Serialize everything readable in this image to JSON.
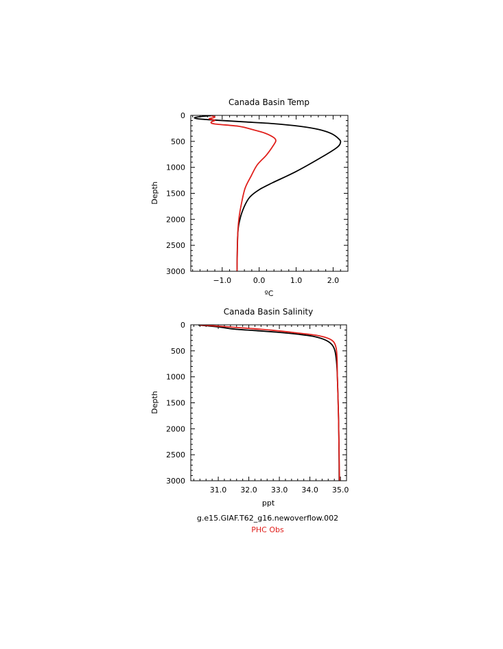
{
  "chart_data": [
    {
      "type": "line",
      "title": "Canada Basin Temp",
      "xlabel": "ºC",
      "ylabel": "Depth",
      "xlim": [
        -1.85,
        2.4
      ],
      "ylim": [
        3000,
        0
      ],
      "xticks": [
        -1.0,
        0.0,
        1.0,
        2.0
      ],
      "xtick_labels": [
        "−1.0",
        "0.0",
        "1.0",
        "2.0"
      ],
      "yticks": [
        0,
        500,
        1000,
        1500,
        2000,
        2500,
        3000
      ],
      "ytick_labels": [
        "0",
        "500",
        "1000",
        "1500",
        "2000",
        "2500",
        "3000"
      ],
      "series": [
        {
          "name": "g.e15.GIAF.T62_g16.newoverflow.002",
          "color": "#000000",
          "points": [
            [
              -1.3,
              5
            ],
            [
              -1.55,
              20
            ],
            [
              -1.75,
              45
            ],
            [
              -1.6,
              70
            ],
            [
              -1.1,
              95
            ],
            [
              -0.4,
              125
            ],
            [
              0.4,
              160
            ],
            [
              1.1,
              210
            ],
            [
              1.6,
              270
            ],
            [
              1.95,
              350
            ],
            [
              2.15,
              450
            ],
            [
              2.2,
              520
            ],
            [
              2.1,
              620
            ],
            [
              1.7,
              800
            ],
            [
              1.0,
              1080
            ],
            [
              0.35,
              1300
            ],
            [
              0.0,
              1430
            ],
            [
              -0.25,
              1570
            ],
            [
              -0.4,
              1750
            ],
            [
              -0.52,
              2000
            ],
            [
              -0.58,
              2300
            ],
            [
              -0.6,
              3000
            ]
          ]
        },
        {
          "name": "PHC Obs",
          "color": "#e0201c",
          "points": [
            [
              -1.3,
              5
            ],
            [
              -1.2,
              35
            ],
            [
              -1.35,
              65
            ],
            [
              -1.2,
              95
            ],
            [
              -1.3,
              130
            ],
            [
              -1.2,
              165
            ],
            [
              -0.55,
              210
            ],
            [
              -0.2,
              270
            ],
            [
              0.15,
              340
            ],
            [
              0.38,
              420
            ],
            [
              0.45,
              480
            ],
            [
              0.4,
              560
            ],
            [
              0.2,
              760
            ],
            [
              -0.05,
              950
            ],
            [
              -0.22,
              1170
            ],
            [
              -0.38,
              1400
            ],
            [
              -0.48,
              1700
            ],
            [
              -0.55,
              2000
            ],
            [
              -0.58,
              2300
            ],
            [
              -0.6,
              3000
            ]
          ]
        }
      ]
    },
    {
      "type": "line",
      "title": "Canada Basin Salinity",
      "xlabel": "ppt",
      "ylabel": "Depth",
      "xlim": [
        30.1,
        35.2
      ],
      "ylim": [
        3000,
        0
      ],
      "xticks": [
        31.0,
        32.0,
        33.0,
        34.0,
        35.0
      ],
      "xtick_labels": [
        "31.0",
        "32.0",
        "33.0",
        "34.0",
        "35.0"
      ],
      "yticks": [
        0,
        500,
        1000,
        1500,
        2000,
        2500,
        3000
      ],
      "ytick_labels": [
        "0",
        "500",
        "1000",
        "1500",
        "2000",
        "2500",
        "3000"
      ],
      "series": [
        {
          "name": "g.e15.GIAF.T62_g16.newoverflow.002",
          "color": "#000000",
          "points": [
            [
              30.35,
              5
            ],
            [
              31.0,
              40
            ],
            [
              31.5,
              80
            ],
            [
              32.2,
              110
            ],
            [
              32.9,
              140
            ],
            [
              33.6,
              180
            ],
            [
              34.1,
              220
            ],
            [
              34.5,
              290
            ],
            [
              34.72,
              380
            ],
            [
              34.82,
              500
            ],
            [
              34.87,
              700
            ],
            [
              34.9,
              1000
            ],
            [
              34.93,
              1600
            ],
            [
              34.95,
              2200
            ],
            [
              34.96,
              3000
            ]
          ]
        },
        {
          "name": "PHC Obs",
          "color": "#e0201c",
          "points": [
            [
              30.4,
              5
            ],
            [
              31.0,
              25
            ],
            [
              31.8,
              60
            ],
            [
              32.7,
              100
            ],
            [
              33.5,
              150
            ],
            [
              34.2,
              200
            ],
            [
              34.6,
              260
            ],
            [
              34.78,
              330
            ],
            [
              34.86,
              450
            ],
            [
              34.89,
              650
            ],
            [
              34.9,
              1000
            ],
            [
              34.93,
              1600
            ],
            [
              34.95,
              2200
            ],
            [
              34.97,
              3000
            ]
          ]
        }
      ]
    }
  ],
  "caption": {
    "line1": "g.e15.GIAF.T62_g16.newoverflow.002",
    "line2": "PHC Obs",
    "line1_color": "#000000",
    "line2_color": "#e0201c"
  }
}
